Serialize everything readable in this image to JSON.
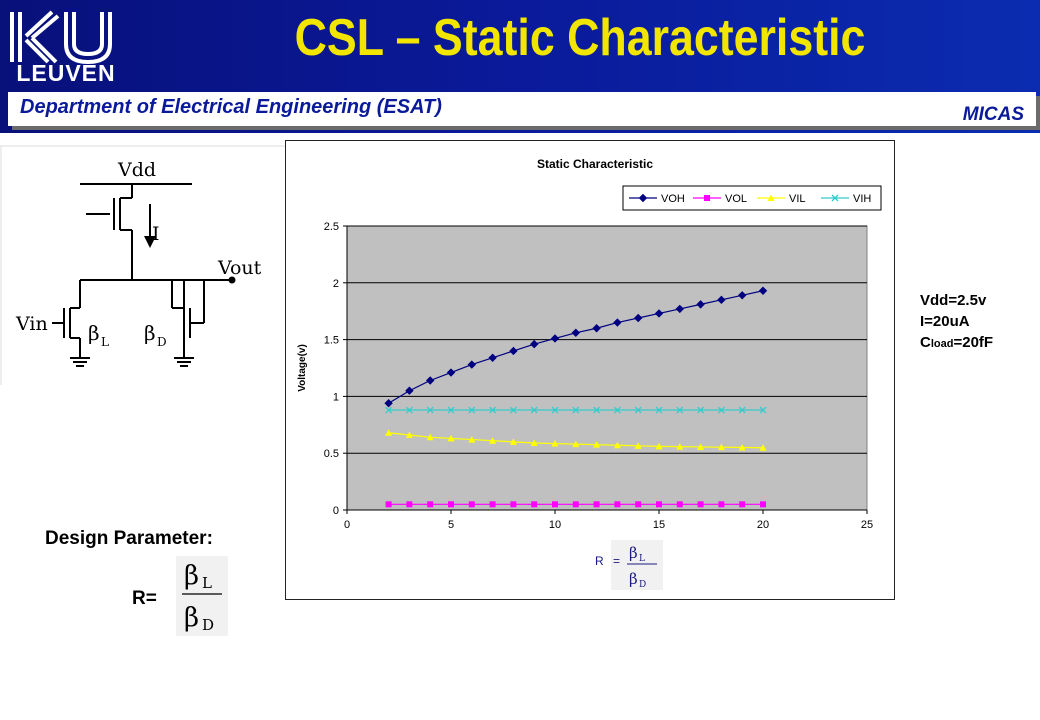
{
  "header": {
    "logo_text": "LEUVEN",
    "title": "CSL – Static Characteristic",
    "department": "Department of Electrical Engineering (ESAT)",
    "group": "MICAS"
  },
  "circuit": {
    "vdd": "Vdd",
    "current": "I",
    "vout": "Vout",
    "vin": "Vin",
    "beta": "β",
    "sub_load": "L",
    "sub_driver": "D"
  },
  "params": {
    "vdd": "Vdd=2.5v",
    "current": "I=20uA",
    "cload_prefix": "C",
    "cload_sub": "load",
    "cload_value": "=20fF"
  },
  "design": {
    "label": "Design Parameter:",
    "r_label": "R=",
    "beta": "β",
    "num_sub": "L",
    "den_sub": "D"
  },
  "chart_formula": {
    "r": "R",
    "eq": "=",
    "beta": "β",
    "num_sub": "L",
    "den_sub": "D"
  },
  "chart_data": {
    "type": "line",
    "title": "Static Characteristic",
    "xlabel": "",
    "ylabel": "Voltage(v)",
    "xlim": [
      0,
      25
    ],
    "ylim": [
      0,
      2.5
    ],
    "xticks": [
      0,
      5,
      10,
      15,
      20,
      25
    ],
    "yticks": [
      0,
      0.5,
      1,
      1.5,
      2,
      2.5
    ],
    "grid": true,
    "legend": "top",
    "x": [
      2,
      3,
      4,
      5,
      6,
      7,
      8,
      9,
      10,
      11,
      12,
      13,
      14,
      15,
      16,
      17,
      18,
      19,
      20
    ],
    "series": [
      {
        "name": "VOH",
        "color": "#000080",
        "marker": "diamond",
        "values": [
          0.94,
          1.05,
          1.14,
          1.21,
          1.28,
          1.34,
          1.4,
          1.46,
          1.51,
          1.56,
          1.6,
          1.65,
          1.69,
          1.73,
          1.77,
          1.81,
          1.85,
          1.89,
          1.93
        ]
      },
      {
        "name": "VOL",
        "color": "#ff00ff",
        "marker": "square",
        "values": [
          0.05,
          0.05,
          0.05,
          0.05,
          0.05,
          0.05,
          0.05,
          0.05,
          0.05,
          0.05,
          0.05,
          0.05,
          0.05,
          0.05,
          0.05,
          0.05,
          0.05,
          0.05,
          0.05
        ]
      },
      {
        "name": "VIL",
        "color": "#ffff00",
        "marker": "triangle",
        "values": [
          0.68,
          0.66,
          0.64,
          0.63,
          0.62,
          0.61,
          0.6,
          0.59,
          0.585,
          0.58,
          0.575,
          0.57,
          0.565,
          0.56,
          0.558,
          0.555,
          0.553,
          0.55,
          0.548
        ]
      },
      {
        "name": "VIH",
        "color": "#33cccc",
        "marker": "x",
        "values": [
          0.88,
          0.88,
          0.88,
          0.88,
          0.88,
          0.88,
          0.88,
          0.88,
          0.88,
          0.88,
          0.88,
          0.88,
          0.88,
          0.88,
          0.88,
          0.88,
          0.88,
          0.88,
          0.88
        ]
      }
    ]
  },
  "colors": {
    "header_bg": "#0a1a9a",
    "title_yellow": "#f2e600",
    "plot_bg": "#c0c0c0"
  }
}
